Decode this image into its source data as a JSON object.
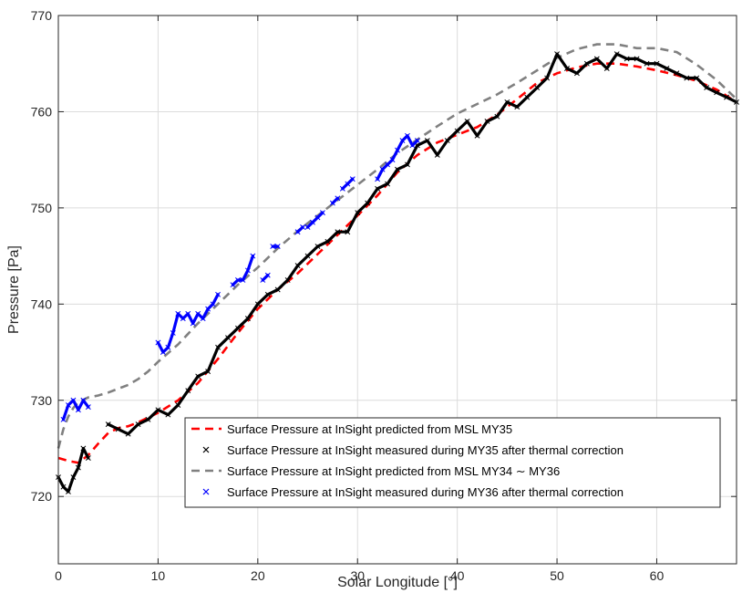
{
  "chart_data": {
    "type": "line",
    "title": "",
    "xlabel": "Solar Longitude [°]",
    "ylabel": "Pressure [Pa]",
    "xlim": [
      0,
      68
    ],
    "ylim": [
      713,
      770
    ],
    "xticks": [
      0,
      10,
      20,
      30,
      40,
      50,
      60
    ],
    "yticks": [
      720,
      730,
      740,
      750,
      760,
      770
    ],
    "grid": true,
    "legend_position": "bottom-right",
    "series": [
      {
        "name": "Surface Pressure at InSight predicted from MSL MY35",
        "style": "dashed",
        "marker": "none",
        "color": "#ff0000",
        "x": [
          0,
          1,
          2,
          3,
          4,
          5,
          6,
          7,
          8,
          9,
          10,
          12,
          14,
          16,
          18,
          20,
          22,
          24,
          26,
          28,
          30,
          32,
          34,
          36,
          38,
          40,
          42,
          44,
          46,
          48,
          50,
          52,
          54,
          56,
          58,
          60,
          62,
          64,
          66,
          68
        ],
        "y": [
          724.0,
          723.7,
          723.5,
          724.3,
          725.5,
          726.6,
          727.1,
          727.3,
          727.7,
          728.2,
          728.7,
          730.0,
          731.8,
          734.3,
          737.0,
          739.5,
          741.5,
          743.2,
          745.2,
          747.2,
          749.2,
          751.3,
          753.7,
          755.5,
          756.8,
          757.6,
          758.4,
          759.7,
          761.3,
          763.0,
          764.0,
          764.6,
          765.0,
          765.0,
          764.7,
          764.3,
          763.8,
          763.2,
          762.3,
          761.0
        ]
      },
      {
        "name": "Surface Pressure at InSight measured during MY35 after thermal correction",
        "style": "none",
        "marker": "x",
        "color": "#000000",
        "segments": [
          {
            "x": [
              0,
              0.5,
              1,
              1.5,
              2,
              2.5,
              3
            ],
            "y": [
              722.0,
              721.0,
              720.5,
              722.0,
              723.0,
              725.0,
              724.0
            ]
          },
          {
            "x": [
              5,
              6,
              7,
              8,
              9,
              10,
              11,
              12,
              13,
              14,
              15,
              16,
              17,
              18,
              19,
              20,
              21,
              22,
              23,
              24,
              25,
              26,
              27,
              28,
              29,
              30,
              31,
              32,
              33,
              34,
              35,
              36,
              37,
              38,
              39,
              40,
              41,
              42,
              43,
              44,
              45,
              46,
              47,
              48,
              49,
              50,
              51,
              52,
              53,
              54,
              55,
              56,
              57,
              58,
              59,
              60,
              61,
              62,
              63,
              64,
              65,
              66,
              67,
              68
            ],
            "y": [
              727.5,
              727.0,
              726.5,
              727.5,
              728.0,
              729.0,
              728.5,
              729.5,
              731.0,
              732.5,
              733.0,
              735.5,
              736.5,
              737.5,
              738.5,
              740.0,
              741.0,
              741.5,
              742.5,
              744.0,
              745.0,
              746.0,
              746.5,
              747.5,
              747.5,
              749.5,
              750.5,
              752.0,
              752.5,
              754.0,
              754.5,
              756.5,
              757.0,
              755.5,
              757.0,
              758.0,
              759.0,
              757.5,
              759.0,
              759.5,
              761.0,
              760.5,
              761.5,
              762.5,
              763.5,
              766.0,
              764.5,
              764.0,
              765.0,
              765.5,
              764.5,
              766.0,
              765.5,
              765.5,
              765.0,
              765.0,
              764.5,
              764.0,
              763.5,
              763.5,
              762.5,
              762.0,
              761.5,
              761.0
            ]
          }
        ]
      },
      {
        "name": "Surface Pressure at InSight predicted from MSL MY34 ∼ MY36",
        "style": "dashed",
        "marker": "none",
        "color": "#808080",
        "x": [
          0,
          0.5,
          1,
          1.5,
          2,
          3,
          4,
          5,
          6,
          7,
          8,
          9,
          10,
          12,
          14,
          16,
          18,
          20,
          22,
          24,
          26,
          28,
          30,
          32,
          34,
          36,
          38,
          40,
          42,
          44,
          46,
          48,
          50,
          52,
          54,
          56,
          58,
          60,
          62,
          64,
          66,
          68
        ],
        "y": [
          725.0,
          727.0,
          728.3,
          729.2,
          729.8,
          730.3,
          730.5,
          730.8,
          731.2,
          731.6,
          732.2,
          733.0,
          734.0,
          735.8,
          738.0,
          740.0,
          742.0,
          743.8,
          745.8,
          747.6,
          749.2,
          750.8,
          752.4,
          754.0,
          755.7,
          757.1,
          758.5,
          759.8,
          760.8,
          761.8,
          763.0,
          764.3,
          765.6,
          766.5,
          767.0,
          767.0,
          766.6,
          766.6,
          766.2,
          764.9,
          763.3,
          761.3
        ]
      },
      {
        "name": "Surface Pressure at InSight measured during MY36 after thermal correction",
        "style": "none",
        "marker": "x",
        "color": "#0000ff",
        "segments": [
          {
            "x": [
              0.5,
              1,
              1.5,
              2,
              2.5,
              3
            ],
            "y": [
              728.0,
              729.5,
              730.0,
              729.0,
              730.0,
              729.3
            ]
          },
          {
            "x": [
              10,
              10.5,
              11,
              11.5,
              12,
              12.5,
              13,
              13.5,
              14,
              14.5,
              15,
              15.5,
              16
            ],
            "y": [
              736.0,
              735.0,
              735.5,
              737.0,
              739.0,
              738.5,
              739.0,
              738.0,
              739.0,
              738.5,
              739.5,
              740.0,
              741.0
            ]
          },
          {
            "x": [
              17.5,
              18,
              18.5,
              19,
              19.5
            ],
            "y": [
              742.0,
              742.5,
              742.5,
              743.5,
              745.0
            ]
          },
          {
            "x": [
              20.5,
              21
            ],
            "y": [
              742.5,
              743.0
            ]
          },
          {
            "x": [
              21.5,
              22
            ],
            "y": [
              746.0,
              746.0
            ]
          },
          {
            "x": [
              24,
              24.5
            ],
            "y": [
              747.5,
              748.0
            ]
          },
          {
            "x": [
              25,
              25.5,
              26,
              26.5
            ],
            "y": [
              748.0,
              748.5,
              749.0,
              749.5
            ]
          },
          {
            "x": [
              27.5,
              28
            ],
            "y": [
              750.5,
              751.0
            ]
          },
          {
            "x": [
              28.5,
              29,
              29.5
            ],
            "y": [
              752.0,
              752.5,
              753.0
            ]
          },
          {
            "x": [
              32,
              32.5,
              33,
              33.5,
              34,
              34.5,
              35,
              35.5,
              36
            ],
            "y": [
              753.0,
              754.0,
              754.5,
              755.0,
              756.0,
              757.0,
              757.5,
              756.5,
              757.0
            ]
          }
        ]
      }
    ]
  }
}
